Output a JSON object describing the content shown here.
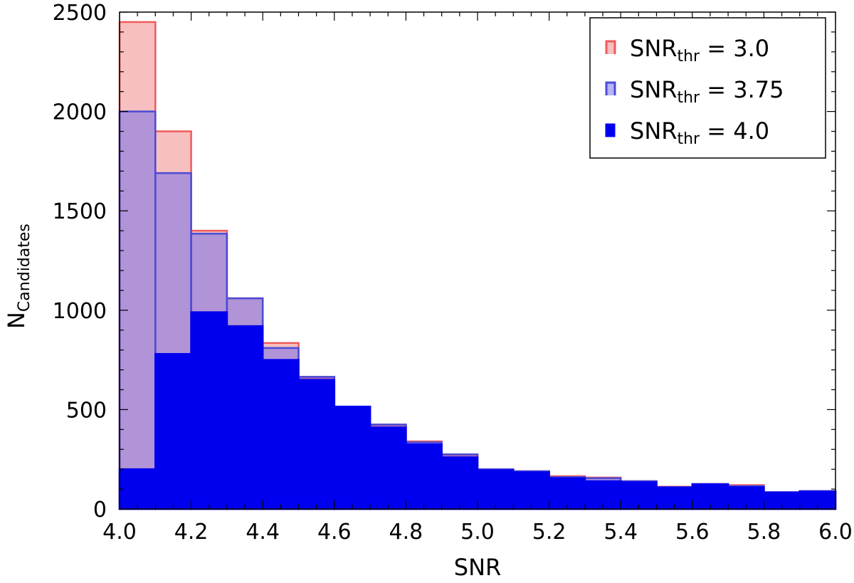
{
  "chart_data": {
    "type": "bar",
    "title": "",
    "xlabel": "SNR",
    "ylabel": {
      "main": "N",
      "sub": "Candidates"
    },
    "xlim": [
      4.0,
      6.0
    ],
    "ylim": [
      0,
      2500
    ],
    "bin_edges": [
      4.0,
      4.1,
      4.2,
      4.3,
      4.4,
      4.5,
      4.6,
      4.7,
      4.8,
      4.9,
      5.0,
      5.1,
      5.2,
      5.3,
      5.4,
      5.5,
      5.6,
      5.7,
      5.8,
      5.9,
      6.0
    ],
    "xticks": [
      4.0,
      4.2,
      4.4,
      4.6,
      4.8,
      5.0,
      5.2,
      5.4,
      5.6,
      5.8,
      6.0
    ],
    "xtick_labels": [
      "4.0",
      "4.2",
      "4.4",
      "4.6",
      "4.8",
      "5.0",
      "5.2",
      "5.4",
      "5.6",
      "5.8",
      "6.0"
    ],
    "yticks": [
      0,
      500,
      1000,
      1500,
      2000,
      2500
    ],
    "ytick_labels": [
      "0",
      "500",
      "1000",
      "1500",
      "2000",
      "2500"
    ],
    "grid": false,
    "legend_position": "top-right",
    "series": [
      {
        "name": {
          "main": "SNR",
          "sub": "thr",
          "rest": " = 3.0"
        },
        "fill": "#f08080",
        "fill_opacity": 0.5,
        "stroke": "#f05a5a",
        "values": [
          2450,
          1900,
          1400,
          1060,
          835,
          660,
          515,
          420,
          340,
          270,
          200,
          190,
          165,
          158,
          140,
          112,
          125,
          120,
          85,
          90
        ]
      },
      {
        "name": {
          "main": "SNR",
          "sub": "thr",
          "rest": " = 3.75"
        },
        "fill": "#6a6af0",
        "fill_opacity": 0.5,
        "stroke": "#4b4bd8",
        "values": [
          2000,
          1690,
          1385,
          1060,
          810,
          665,
          515,
          425,
          335,
          275,
          200,
          190,
          160,
          155,
          140,
          110,
          125,
          115,
          85,
          90
        ]
      },
      {
        "name": {
          "main": "SNR",
          "sub": "thr",
          "rest": " = 4.0"
        },
        "fill": "#0000ee",
        "fill_opacity": 1.0,
        "stroke": "#0000ee",
        "values": [
          200,
          780,
          990,
          920,
          750,
          650,
          515,
          410,
          325,
          260,
          195,
          185,
          155,
          140,
          135,
          108,
          125,
          110,
          82,
          88
        ]
      }
    ]
  }
}
